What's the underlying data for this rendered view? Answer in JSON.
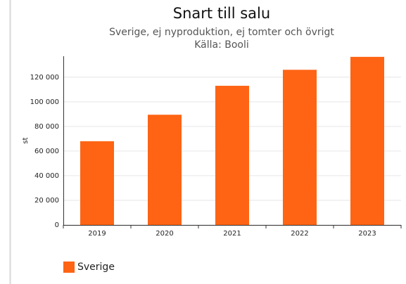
{
  "chart_data": {
    "type": "bar",
    "title": "Snart till salu",
    "subtitle": "Sverige, ej nyproduktion, ej tomter och övrigt",
    "source": "Källa: Booli",
    "y_label": "st",
    "categories": [
      "2019",
      "2020",
      "2021",
      "2022",
      "2023"
    ],
    "series": [
      {
        "name": "Sverige",
        "color": "#fe6414",
        "values": [
          68000,
          89500,
          113000,
          126000,
          136500
        ]
      }
    ],
    "ylim": [
      0,
      137000
    ],
    "yticks": [
      0,
      {
        "value": 20000,
        "label": "20 000"
      },
      {
        "value": 40000,
        "label": "40 000"
      },
      {
        "value": 60000,
        "label": "60 000"
      },
      {
        "value": 80000,
        "label": "80 000"
      },
      {
        "value": 100000,
        "label": "100 000"
      },
      {
        "value": 120000,
        "label": "120 000"
      }
    ],
    "grid": true,
    "legend": "bottom-left"
  }
}
